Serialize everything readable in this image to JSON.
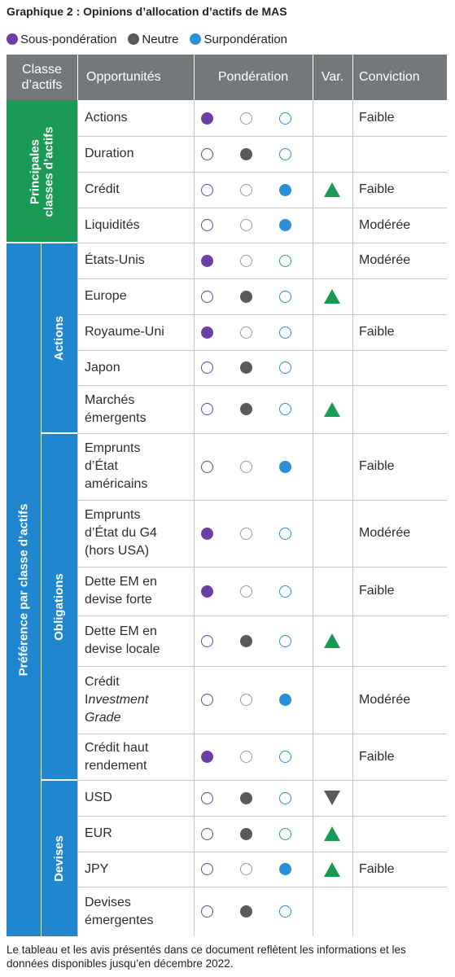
{
  "title": "Graphique 2 : Opinions d’allocation d’actifs de MAS",
  "legend": [
    {
      "label": "Sous-pondération",
      "color": "#6c3fa6"
    },
    {
      "label": "Neutre",
      "color": "#5a5a5a"
    },
    {
      "label": "Surpondération",
      "color": "#2a8fd4"
    }
  ],
  "headers": {
    "classe_line1": "Classe",
    "classe_line2": "d’actifs",
    "opportunites": "Opportunités",
    "ponderation": "Pondération",
    "var": "Var.",
    "conviction": "Conviction"
  },
  "groups": {
    "principales_line1": "Principales",
    "principales_line2": "classes d’actifs",
    "principales_color": "#1a9a55",
    "preference": "Préférence par classe d’actifs",
    "preference_color": "#1f86cf",
    "actions": "Actions",
    "obligations": "Obligations",
    "devises": "Devises"
  },
  "rows": [
    {
      "label": "Actions",
      "weight": "sous",
      "var": "",
      "conviction": "Faible"
    },
    {
      "label": "Duration",
      "weight": "neutre",
      "var": "",
      "conviction": ""
    },
    {
      "label": "Crédit",
      "weight": "sur",
      "var": "up",
      "conviction": "Faible"
    },
    {
      "label": "Liquidités",
      "weight": "sur",
      "var": "",
      "conviction": "Modérée"
    },
    {
      "label": "États-Unis",
      "weight": "sous",
      "var": "",
      "conviction": "Modérée"
    },
    {
      "label": "Europe",
      "weight": "neutre",
      "var": "up",
      "conviction": ""
    },
    {
      "label": "Royaume-Uni",
      "weight": "sous",
      "var": "",
      "conviction": "Faible"
    },
    {
      "label": "Japon",
      "weight": "neutre",
      "var": "",
      "conviction": ""
    },
    {
      "label": "Marchés émergents",
      "weight": "neutre",
      "var": "up",
      "conviction": ""
    },
    {
      "label": "Emprunts d’État américains",
      "weight": "sur",
      "var": "",
      "conviction": "Faible"
    },
    {
      "label": "Emprunts d’État du G4 (hors USA)",
      "weight": "sous",
      "var": "",
      "conviction": "Modérée"
    },
    {
      "label": "Dette EM en devise forte",
      "weight": "sous",
      "var": "",
      "conviction": "Faible"
    },
    {
      "label": "Dette EM en devise locale",
      "weight": "neutre",
      "var": "up",
      "conviction": ""
    },
    {
      "label_prefix": "Crédit I",
      "label_italic": "nvestment Grade",
      "weight": "sur",
      "var": "",
      "conviction": "Modérée"
    },
    {
      "label": "Crédit haut rendement",
      "weight": "sous",
      "var": "",
      "conviction": "Faible"
    },
    {
      "label": "USD",
      "weight": "neutre",
      "var": "down",
      "conviction": ""
    },
    {
      "label": "EUR",
      "weight": "neutre",
      "var": "up",
      "conviction": ""
    },
    {
      "label": "JPY",
      "weight": "sur",
      "var": "up",
      "conviction": "Faible"
    },
    {
      "label": "Devises émergentes",
      "weight": "neutre",
      "var": "",
      "conviction": ""
    }
  ],
  "footnote": "Le tableau et les avis présentés dans ce document reflètent les informations et les données disponibles jusqu’en décembre 2022."
}
